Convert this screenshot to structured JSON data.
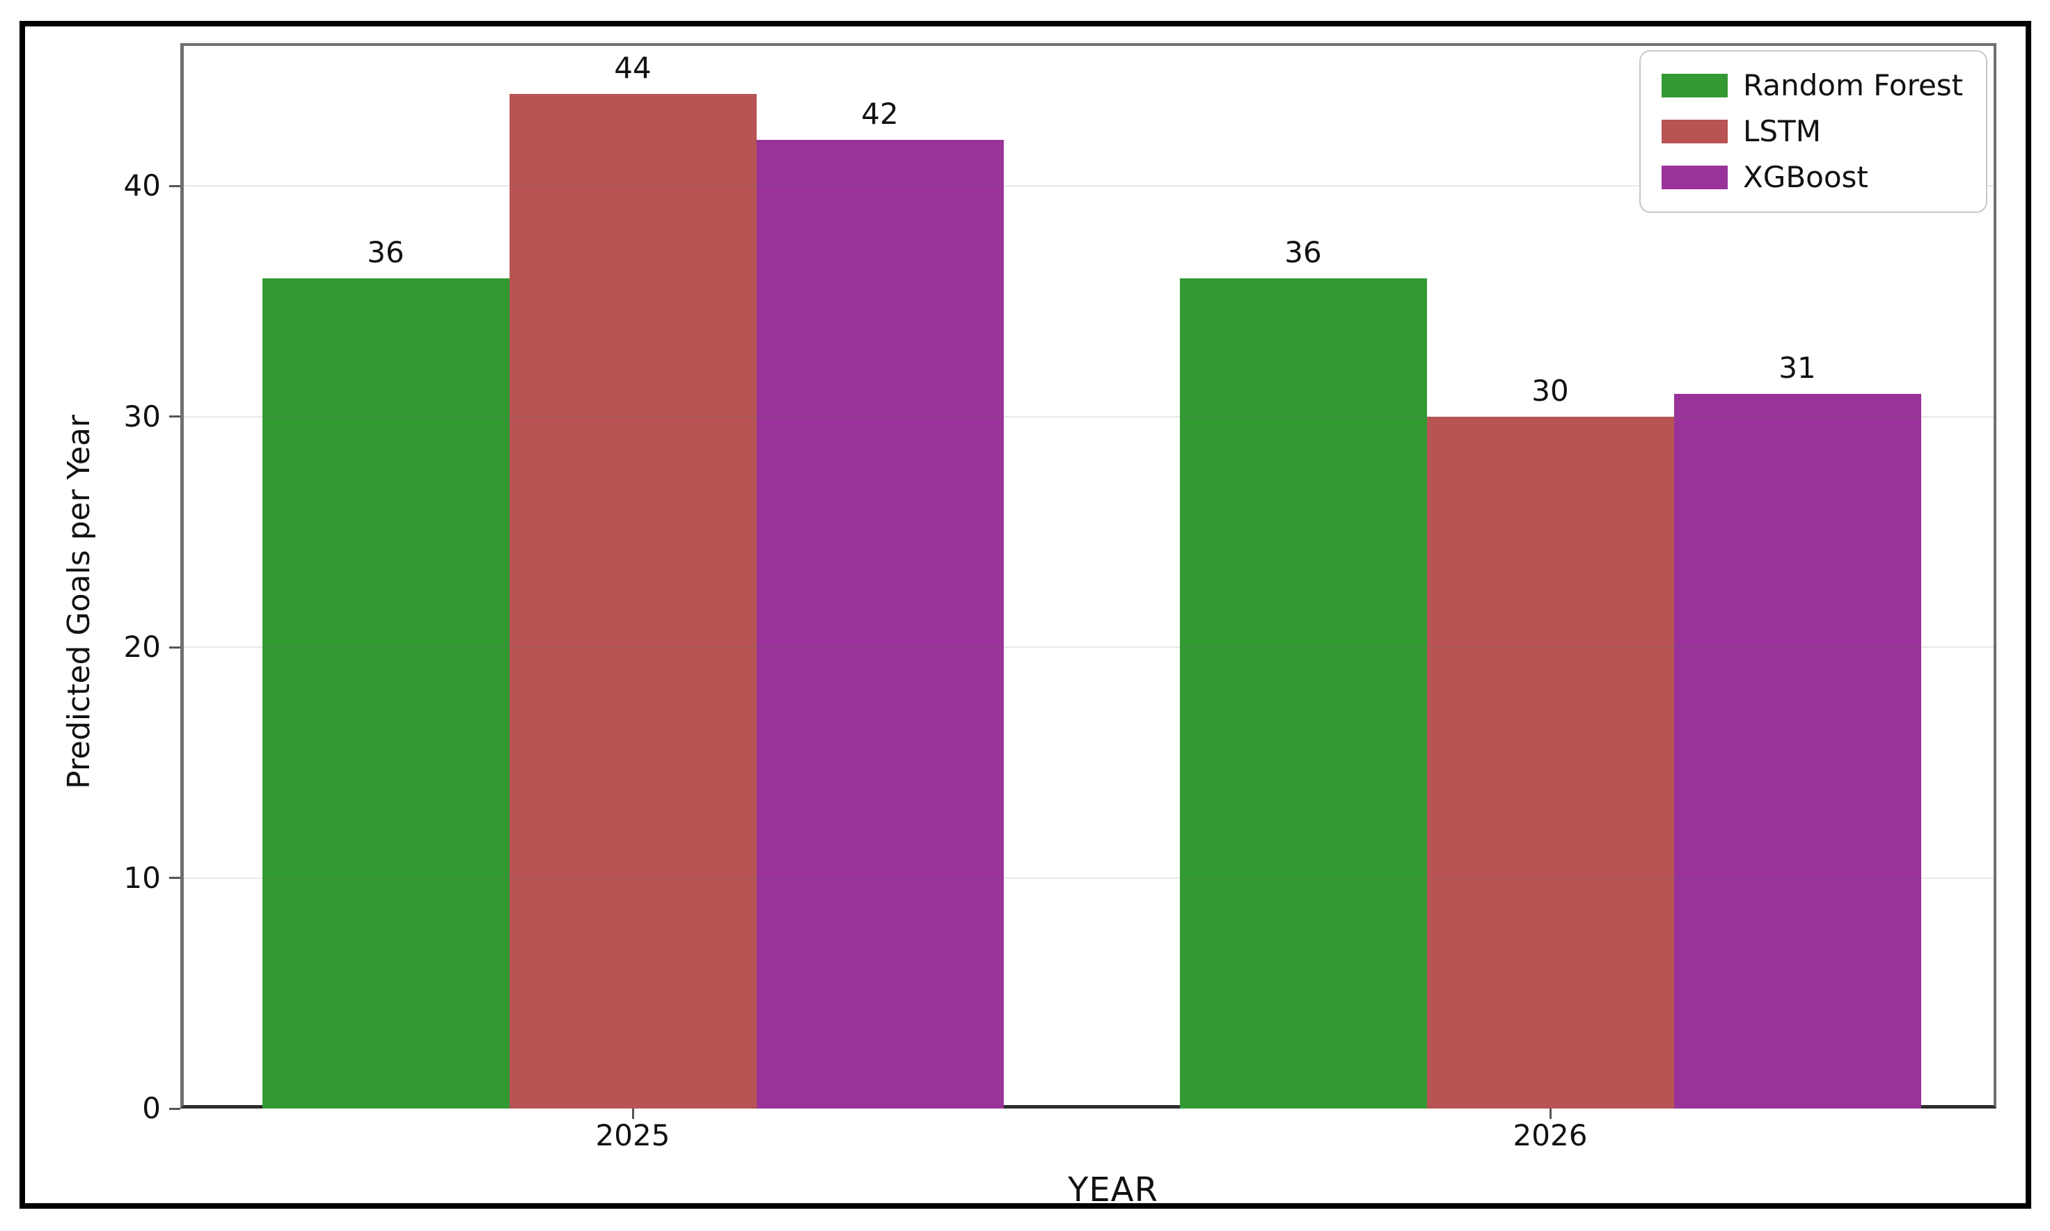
{
  "page": {
    "background_color": "#ffffff",
    "outer_border_color": "#000000"
  },
  "chart_data": {
    "type": "bar",
    "title": "",
    "xlabel": "YEAR",
    "ylabel": "Predicted Goals per Year",
    "categories": [
      "2025",
      "2026"
    ],
    "series": [
      {
        "name": "Random Forest",
        "color": "#339933",
        "values": [
          36,
          36
        ]
      },
      {
        "name": "LSTM",
        "color": "#b85454",
        "values": [
          44,
          30
        ]
      },
      {
        "name": "XGBoost",
        "color": "#993399",
        "values": [
          42,
          31
        ]
      }
    ],
    "bar_value_labels": true,
    "yticks": [
      0,
      10,
      20,
      30,
      40
    ],
    "ylim": [
      0,
      46.2
    ],
    "grid": "horizontal",
    "grid_color": "#e4e4e4",
    "spine_color": "#6f6f6f",
    "legend_position": "upper-right",
    "legend_entries": [
      "Random Forest",
      "LSTM",
      "XGBoost"
    ]
  }
}
